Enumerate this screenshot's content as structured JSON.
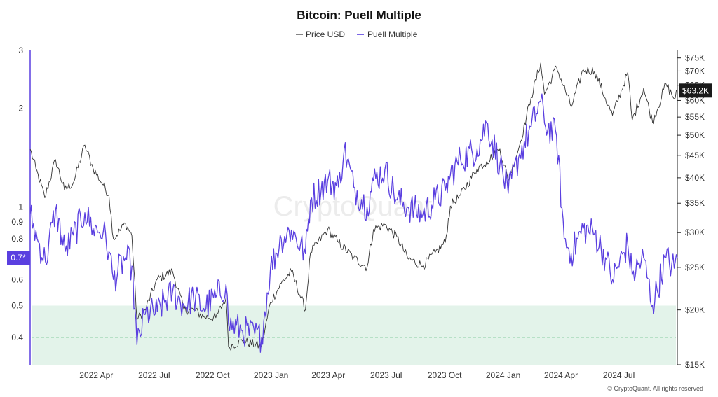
{
  "chart_data": {
    "type": "line",
    "title": "Bitcoin: Puell Multiple",
    "legend": {
      "placement": "top-center",
      "entries": [
        {
          "name": "Price USD",
          "color": "#333333"
        },
        {
          "name": "Puell Multiple",
          "color": "#5a3fe0"
        }
      ]
    },
    "x_ticks": [
      "2022 Apr",
      "2022 Jul",
      "2022 Oct",
      "2023 Jan",
      "2023 Apr",
      "2023 Jul",
      "2023 Oct",
      "2024 Jan",
      "2024 Apr",
      "2024 Jul"
    ],
    "x_range": [
      "2022-01-01",
      "2024-10-15"
    ],
    "y_left": {
      "scale": "log",
      "range": [
        0.33,
        3
      ],
      "ticks": [
        "3",
        "2",
        "1",
        "0.9",
        "0.8",
        "0.7",
        "0.6",
        "0.5",
        "0.4"
      ],
      "current_value_label": "0.7*",
      "threshold_zone": [
        0.33,
        0.5
      ],
      "threshold_line": 0.4,
      "zone_color": "#e3f3ea",
      "threshold_line_color": "#6cc28a"
    },
    "y_right": {
      "scale": "log",
      "range": [
        15000,
        78000
      ],
      "ticks": [
        "$75K",
        "$70K",
        "$65K",
        "$60K",
        "$55K",
        "$50K",
        "$45K",
        "$40K",
        "$35K",
        "$30K",
        "$25K",
        "$20K",
        "$15K"
      ],
      "current_value_label": "$63.2K"
    },
    "series": [
      {
        "name": "Price USD",
        "axis": "right",
        "color": "#333333",
        "points": [
          [
            "2022-01-01",
            46500
          ],
          [
            "2022-01-10",
            42000
          ],
          [
            "2022-01-24",
            36000
          ],
          [
            "2022-02-10",
            44000
          ],
          [
            "2022-02-24",
            37500
          ],
          [
            "2022-03-10",
            39000
          ],
          [
            "2022-03-28",
            47500
          ],
          [
            "2022-04-10",
            42000
          ],
          [
            "2022-04-26",
            38500
          ],
          [
            "2022-05-05",
            36500
          ],
          [
            "2022-05-12",
            29000
          ],
          [
            "2022-05-31",
            31500
          ],
          [
            "2022-06-10",
            29500
          ],
          [
            "2022-06-18",
            19000
          ],
          [
            "2022-07-01",
            20000
          ],
          [
            "2022-07-20",
            23500
          ],
          [
            "2022-08-13",
            24500
          ],
          [
            "2022-08-31",
            20000
          ],
          [
            "2022-09-15",
            20000
          ],
          [
            "2022-10-01",
            19300
          ],
          [
            "2022-10-20",
            19200
          ],
          [
            "2022-11-05",
            21300
          ],
          [
            "2022-11-09",
            16500
          ],
          [
            "2022-12-01",
            17000
          ],
          [
            "2022-12-31",
            16500
          ],
          [
            "2023-01-14",
            20800
          ],
          [
            "2023-01-31",
            23000
          ],
          [
            "2023-02-16",
            24500
          ],
          [
            "2023-03-10",
            20000
          ],
          [
            "2023-03-18",
            27000
          ],
          [
            "2023-04-14",
            30500
          ],
          [
            "2023-05-01",
            28500
          ],
          [
            "2023-05-25",
            26300
          ],
          [
            "2023-06-15",
            25000
          ],
          [
            "2023-06-25",
            30500
          ],
          [
            "2023-07-13",
            31300
          ],
          [
            "2023-08-01",
            29300
          ],
          [
            "2023-08-18",
            26200
          ],
          [
            "2023-09-11",
            25200
          ],
          [
            "2023-09-30",
            27000
          ],
          [
            "2023-10-16",
            28500
          ],
          [
            "2023-10-24",
            34500
          ],
          [
            "2023-11-09",
            36500
          ],
          [
            "2023-12-05",
            42000
          ],
          [
            "2023-12-20",
            43500
          ],
          [
            "2024-01-10",
            46500
          ],
          [
            "2024-01-23",
            39500
          ],
          [
            "2024-02-10",
            47500
          ],
          [
            "2024-02-28",
            61000
          ],
          [
            "2024-03-14",
            73000
          ],
          [
            "2024-03-20",
            62000
          ],
          [
            "2024-04-08",
            71500
          ],
          [
            "2024-05-01",
            58000
          ],
          [
            "2024-05-20",
            70500
          ],
          [
            "2024-06-07",
            70000
          ],
          [
            "2024-06-24",
            60500
          ],
          [
            "2024-07-05",
            55500
          ],
          [
            "2024-07-29",
            69500
          ],
          [
            "2024-08-05",
            54000
          ],
          [
            "2024-08-23",
            64000
          ],
          [
            "2024-09-06",
            53500
          ],
          [
            "2024-09-27",
            65500
          ],
          [
            "2024-10-10",
            60500
          ],
          [
            "2024-10-15",
            63200
          ]
        ]
      },
      {
        "name": "Puell Multiple",
        "axis": "left",
        "color": "#5a3fe0",
        "points": [
          [
            "2022-01-01",
            0.95
          ],
          [
            "2022-01-12",
            0.8
          ],
          [
            "2022-01-25",
            0.68
          ],
          [
            "2022-02-10",
            0.98
          ],
          [
            "2022-02-25",
            0.73
          ],
          [
            "2022-03-10",
            0.82
          ],
          [
            "2022-03-28",
            0.96
          ],
          [
            "2022-04-10",
            0.86
          ],
          [
            "2022-04-26",
            0.84
          ],
          [
            "2022-05-05",
            0.73
          ],
          [
            "2022-05-12",
            0.6
          ],
          [
            "2022-05-31",
            0.7
          ],
          [
            "2022-06-10",
            0.66
          ],
          [
            "2022-06-18",
            0.38
          ],
          [
            "2022-07-01",
            0.47
          ],
          [
            "2022-07-20",
            0.48
          ],
          [
            "2022-08-13",
            0.55
          ],
          [
            "2022-08-31",
            0.5
          ],
          [
            "2022-09-15",
            0.53
          ],
          [
            "2022-10-01",
            0.49
          ],
          [
            "2022-10-20",
            0.53
          ],
          [
            "2022-11-05",
            0.58
          ],
          [
            "2022-11-09",
            0.44
          ],
          [
            "2022-12-01",
            0.42
          ],
          [
            "2022-12-31",
            0.4
          ],
          [
            "2023-01-14",
            0.65
          ],
          [
            "2023-01-31",
            0.8
          ],
          [
            "2023-02-16",
            0.85
          ],
          [
            "2023-03-10",
            0.72
          ],
          [
            "2023-03-18",
            1.05
          ],
          [
            "2023-04-14",
            1.2
          ],
          [
            "2023-05-01",
            1.15
          ],
          [
            "2023-05-10",
            1.5
          ],
          [
            "2023-05-25",
            1.15
          ],
          [
            "2023-06-15",
            1.0
          ],
          [
            "2023-06-25",
            1.2
          ],
          [
            "2023-07-13",
            1.3
          ],
          [
            "2023-08-01",
            1.05
          ],
          [
            "2023-08-18",
            1.0
          ],
          [
            "2023-09-11",
            0.95
          ],
          [
            "2023-09-30",
            1.05
          ],
          [
            "2023-10-16",
            1.12
          ],
          [
            "2023-10-24",
            1.25
          ],
          [
            "2023-11-09",
            1.4
          ],
          [
            "2023-12-05",
            1.5
          ],
          [
            "2023-12-20",
            1.8
          ],
          [
            "2024-01-10",
            1.35
          ],
          [
            "2024-01-23",
            1.1
          ],
          [
            "2024-02-10",
            1.45
          ],
          [
            "2024-02-28",
            1.75
          ],
          [
            "2024-03-14",
            2.1
          ],
          [
            "2024-03-20",
            1.8
          ],
          [
            "2024-04-08",
            1.65
          ],
          [
            "2024-04-20",
            0.8
          ],
          [
            "2024-05-01",
            0.72
          ],
          [
            "2024-05-20",
            0.86
          ],
          [
            "2024-06-07",
            0.83
          ],
          [
            "2024-06-24",
            0.7
          ],
          [
            "2024-07-05",
            0.6
          ],
          [
            "2024-07-29",
            0.77
          ],
          [
            "2024-08-05",
            0.62
          ],
          [
            "2024-08-23",
            0.7
          ],
          [
            "2024-09-06",
            0.5
          ],
          [
            "2024-09-27",
            0.7
          ],
          [
            "2024-10-10",
            0.65
          ],
          [
            "2024-10-15",
            0.7
          ]
        ]
      }
    ],
    "watermark": "CryptoQuant",
    "footer": "© CryptoQuant. All rights reserved",
    "grid": false
  }
}
